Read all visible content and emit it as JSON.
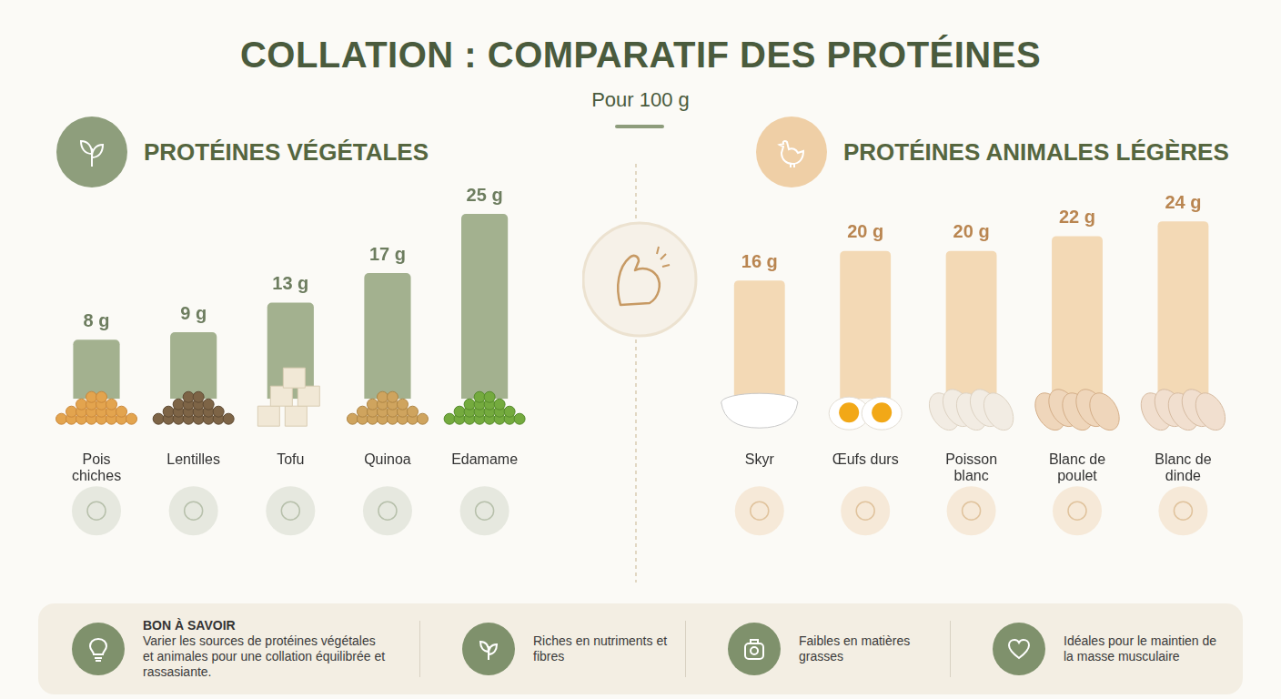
{
  "title": "COLLATION : COMPARATIF DES PROTÉINES",
  "subtitle": "Pour 100 g",
  "chart_data": [
    {
      "type": "bar",
      "title": "PROTÉINES VÉGÉTALES",
      "categories": [
        "Pois chiches",
        "Lentilles",
        "Tofu",
        "Quinoa",
        "Edamame"
      ],
      "values": [
        8,
        9,
        13,
        17,
        25
      ],
      "value_labels": [
        "8 g",
        "9 g",
        "13 g",
        "17 g",
        "25 g"
      ],
      "color": "#a3b18f",
      "ylim": [
        0,
        25
      ],
      "grid": false,
      "data_labels": true,
      "tick_labels": "x"
    },
    {
      "type": "bar",
      "title": "PROTÉINES ANIMALES LÉGÈRES",
      "categories": [
        "Skyr",
        "Œufs durs",
        "Poisson blanc",
        "Blanc de poulet",
        "Blanc de dinde"
      ],
      "values": [
        16,
        20,
        20,
        22,
        24
      ],
      "value_labels": [
        "16 g",
        "20 g",
        "20 g",
        "22 g",
        "24 g"
      ],
      "color": "#f3d9b5",
      "ylim": [
        0,
        25
      ],
      "grid": false,
      "data_labels": true,
      "tick_labels": "x"
    }
  ],
  "footer": [
    {
      "title": "BON À SAVOIR",
      "text": "Varier les sources de protéines végétales et animales pour une collation équilibrée et rassasiante."
    },
    {
      "text": "Riches en nutriments et fibres"
    },
    {
      "text": "Faibles en matières grasses"
    },
    {
      "text": "Idéales pour le maintien de la masse musculaire"
    }
  ]
}
